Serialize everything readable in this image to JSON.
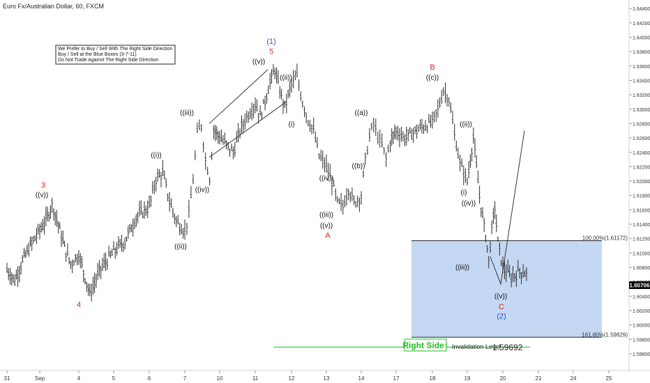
{
  "header": {
    "symbol_title": "Euro Fx/Australian Dollar, 60, FXCM"
  },
  "note": {
    "line1": "We Prefer to Buy / Sell With The Right Side Direction",
    "line2": "Buy / Sell at the Blue Boxes (3-7-11)",
    "line3": "Do Not Trade Against The Right Side Direction"
  },
  "colors": {
    "candle": "#2b2b2b",
    "wave_red": "#e0201a",
    "wave_blue": "#2f4fd6",
    "box_fill": "#c5d8f3",
    "green": "#1fbf1f",
    "price_badge_bg": "#000000"
  },
  "chart_data": {
    "type": "candlestick",
    "title": "Euro Fx/Australian Dollar, 60, FXCM",
    "x_ticks": [
      "31",
      "Sep",
      "4",
      "5",
      "6",
      "7",
      "10",
      "11",
      "12",
      "13",
      "14",
      "17",
      "18",
      "19",
      "20",
      "21",
      "24",
      "25"
    ],
    "y_ticks": [
      "1.64400",
      "1.64200",
      "1.64000",
      "1.63800",
      "1.63600",
      "1.63400",
      "1.63200",
      "1.63000",
      "1.62800",
      "1.62600",
      "1.62400",
      "1.62200",
      "1.62000",
      "1.61800",
      "1.61600",
      "1.61400",
      "1.61200",
      "1.61000",
      "1.60800",
      "1.60600",
      "1.60400",
      "1.60200",
      "1.60000",
      "1.59800",
      "1.59600"
    ],
    "ylim": [
      1.5958,
      1.6446
    ],
    "current_price": "1.60706",
    "series_path": [
      [
        "31",
        1.6077
      ],
      [
        "31",
        1.6062
      ],
      [
        "31",
        1.6089
      ],
      [
        "31",
        1.611
      ],
      [
        "Sep",
        1.6132
      ],
      [
        "Sep",
        1.6145
      ],
      [
        "Sep",
        1.6168
      ],
      [
        "Sep",
        1.614
      ],
      [
        "Sep",
        1.6108
      ],
      [
        "Sep",
        1.6085
      ],
      [
        "4",
        1.6098
      ],
      [
        "4",
        1.6043
      ],
      [
        "4",
        1.6079
      ],
      [
        "5",
        1.6102
      ],
      [
        "5",
        1.6117
      ],
      [
        "5",
        1.615
      ],
      [
        "6",
        1.6165
      ],
      [
        "6",
        1.6203
      ],
      [
        "6",
        1.6212
      ],
      [
        "6",
        1.6172
      ],
      [
        "6",
        1.6145
      ],
      [
        "7",
        1.613
      ],
      [
        "7",
        1.6155
      ],
      [
        "7",
        1.6202
      ],
      [
        "7",
        1.6266
      ],
      [
        "7",
        1.6278
      ],
      [
        "7",
        1.623
      ],
      [
        "7",
        1.6205
      ],
      [
        "7",
        1.6272
      ],
      [
        "10",
        1.6262
      ],
      [
        "10",
        1.625
      ],
      [
        "10",
        1.624
      ],
      [
        "10",
        1.627
      ],
      [
        "10",
        1.629
      ],
      [
        "11",
        1.6308
      ],
      [
        "11",
        1.629
      ],
      [
        "11",
        1.6312
      ],
      [
        "11",
        1.6338
      ],
      [
        "11",
        1.6355
      ],
      [
        "11",
        1.6325
      ],
      [
        "11",
        1.6303
      ],
      [
        "12",
        1.6335
      ],
      [
        "12",
        1.6345
      ],
      [
        "12",
        1.631
      ],
      [
        "12",
        1.6285
      ],
      [
        "12",
        1.627
      ],
      [
        "12",
        1.6235
      ],
      [
        "13",
        1.622
      ],
      [
        "13",
        1.62
      ],
      [
        "13",
        1.617
      ],
      [
        "13",
        1.6165
      ],
      [
        "13",
        1.619
      ],
      [
        "13",
        1.617
      ],
      [
        "14",
        1.618
      ],
      [
        "14",
        1.623
      ],
      [
        "14",
        1.6262
      ],
      [
        "14",
        1.628
      ],
      [
        "14",
        1.6262
      ],
      [
        "14",
        1.625
      ],
      [
        "14",
        1.6232
      ],
      [
        "14",
        1.6255
      ],
      [
        "17",
        1.627
      ],
      [
        "17",
        1.626
      ],
      [
        "17",
        1.6268
      ],
      [
        "17",
        1.6275
      ],
      [
        "18",
        1.6282
      ],
      [
        "18",
        1.63
      ],
      [
        "18",
        1.6327
      ],
      [
        "18",
        1.6315
      ],
      [
        "18",
        1.6265
      ],
      [
        "18",
        1.6225
      ],
      [
        "19",
        1.62
      ],
      [
        "19",
        1.623
      ],
      [
        "19",
        1.6262
      ],
      [
        "19",
        1.622
      ],
      [
        "19",
        1.618
      ],
      [
        "19",
        1.615
      ],
      [
        "19",
        1.6125
      ],
      [
        "19",
        1.609
      ],
      [
        "19",
        1.6132
      ],
      [
        "19",
        1.6165
      ],
      [
        "19",
        1.6115
      ],
      [
        "20",
        1.608
      ],
      [
        "20",
        1.6066
      ],
      [
        "20",
        1.6075
      ],
      [
        "20",
        1.6071
      ]
    ],
    "projection": {
      "from": [
        "20",
        1.6057
      ],
      "to": [
        "21",
        1.627
      ]
    },
    "ending_diagonal": {
      "upper": [
        [
          "10",
          1.628
        ],
        [
          "11",
          1.6355
        ]
      ],
      "lower": [
        [
          "10",
          1.6233
        ],
        [
          "12",
          1.631
        ]
      ]
    },
    "blue_box": {
      "x_from": "17",
      "x_to": "25",
      "y_top": 1.61172,
      "y_bottom": 1.59829
    },
    "levels": [
      {
        "label": "100.00%(1.61172)",
        "value": 1.61172
      },
      {
        "label": "161.80%(1.59829)",
        "value": 1.59829
      }
    ],
    "invalidation": {
      "label": "Invalidation Level",
      "value_text": "1.59692",
      "value": 1.59692
    },
    "right_side_label": "Right Side↑",
    "wave_labels": [
      {
        "text": "3",
        "color": "red",
        "x": "Sep",
        "y": 1.6191
      },
      {
        "text": "((v))",
        "color": "black",
        "x": "Sep",
        "y": 1.6178
      },
      {
        "text": "4",
        "color": "red",
        "x": "4",
        "y": 1.6025
      },
      {
        "text": "((i))",
        "color": "black",
        "x": "6",
        "y": 1.6233
      },
      {
        "text": "((ii))",
        "color": "black",
        "x": "7",
        "y": 1.6106
      },
      {
        "text": "((iii))",
        "color": "black",
        "x": "7",
        "y": 1.6292
      },
      {
        "text": "((iv))",
        "color": "black",
        "x": "7",
        "y": 1.6185
      },
      {
        "text": "(1)",
        "color": "blue",
        "x": "11",
        "y": 1.6391
      },
      {
        "text": "5",
        "color": "red",
        "x": "11",
        "y": 1.6377
      },
      {
        "text": "((v))",
        "color": "black",
        "x": "11",
        "y": 1.6363
      },
      {
        "text": "((ii))",
        "color": "black",
        "x": "12",
        "y": 1.6341
      },
      {
        "text": "(i)",
        "color": "black",
        "x": "12",
        "y": 1.6276
      },
      {
        "text": "((iv))",
        "color": "black",
        "x": "13",
        "y": 1.6201
      },
      {
        "text": "((iii))",
        "color": "black",
        "x": "13",
        "y": 1.615
      },
      {
        "text": "((v))",
        "color": "black",
        "x": "13",
        "y": 1.6135
      },
      {
        "text": "A",
        "color": "red",
        "x": "13",
        "y": 1.6121
      },
      {
        "text": "((a))",
        "color": "black",
        "x": "14",
        "y": 1.6292
      },
      {
        "text": "((b))",
        "color": "black",
        "x": "14",
        "y": 1.6218
      },
      {
        "text": "B",
        "color": "red",
        "x": "18",
        "y": 1.6355
      },
      {
        "text": "((c))",
        "color": "black",
        "x": "18",
        "y": 1.6341
      },
      {
        "text": "((ii))",
        "color": "black",
        "x": "19",
        "y": 1.6276
      },
      {
        "text": "(i)",
        "color": "black",
        "x": "19",
        "y": 1.6181
      },
      {
        "text": "((iv))",
        "color": "black",
        "x": "19",
        "y": 1.6166
      },
      {
        "text": "((iii))",
        "color": "black",
        "x": "19",
        "y": 1.6077
      },
      {
        "text": "((v))",
        "color": "black",
        "x": "20",
        "y": 1.6037
      },
      {
        "text": "C",
        "color": "red",
        "x": "20",
        "y": 1.6022
      },
      {
        "text": "(2)",
        "color": "blue",
        "x": "20",
        "y": 1.6009
      }
    ]
  }
}
